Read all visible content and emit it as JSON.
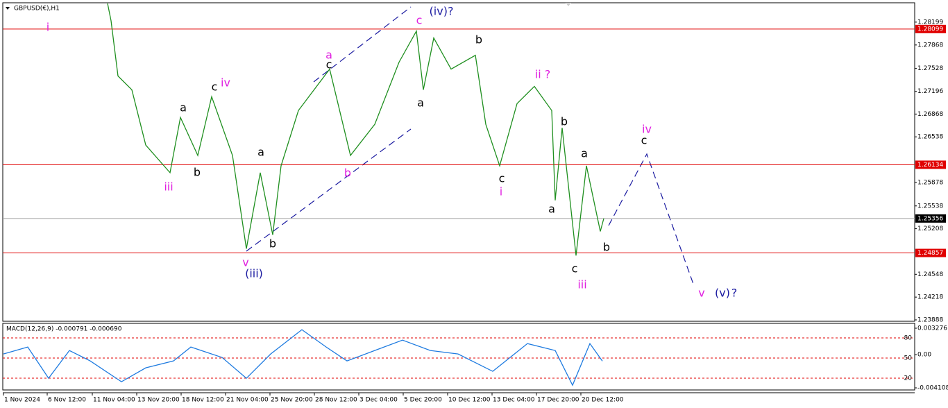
{
  "chart_data": [
    {
      "type": "line",
      "title": "GBPUSD(€),H1",
      "x": [
        151,
        156,
        166,
        186,
        206,
        241,
        256,
        281,
        301,
        331,
        351,
        371,
        389,
        401,
        426,
        471,
        501,
        536,
        571,
        596,
        606,
        621,
        646,
        681,
        696,
        716,
        741,
        766,
        791,
        796,
        806,
        826,
        841,
        861,
        866
      ],
      "series": [
        {
          "name": "GBPUSD",
          "color": "#1f8f1f",
          "values": [
            1.28469,
            1.28219,
            1.27419,
            1.27219,
            1.26419,
            1.26019,
            1.26819,
            1.26269,
            1.27119,
            1.26269,
            1.24919,
            1.26019,
            1.25119,
            1.26119,
            1.26919,
            1.27519,
            1.26269,
            1.26719,
            1.27619,
            1.28069,
            1.27219,
            1.27969,
            1.27519,
            1.27719,
            1.26719,
            1.26119,
            1.27019,
            1.27269,
            1.26919,
            1.25619,
            1.26669,
            1.24819,
            1.26119,
            1.25169,
            1.25356
          ]
        }
      ],
      "xlim": [
        0,
        1314
      ],
      "xticks": [
        {
          "value": 1,
          "label": "1 Nov 2024"
        },
        {
          "value": 64,
          "label": "6 Nov 12:00"
        },
        {
          "value": 129,
          "label": "11 Nov 04:00"
        },
        {
          "value": 193,
          "label": "13 Nov 20:00"
        },
        {
          "value": 257,
          "label": "18 Nov 12:00"
        },
        {
          "value": 321,
          "label": "21 Nov 04:00"
        },
        {
          "value": 385,
          "label": "25 Nov 20:00"
        },
        {
          "value": 449,
          "label": "28 Nov 12:00"
        },
        {
          "value": 513,
          "label": "3 Dec 04:00"
        },
        {
          "value": 577,
          "label": "5 Dec 20:00"
        },
        {
          "value": 641,
          "label": "10 Dec 12:00"
        },
        {
          "value": 705,
          "label": "13 Dec 04:00"
        },
        {
          "value": 769,
          "label": "17 Dec 20:00"
        },
        {
          "value": 833,
          "label": "20 Dec 12:00"
        }
      ],
      "ylim": [
        1.23868,
        1.28479
      ],
      "yticks": [
        1.28199,
        1.27868,
        1.27528,
        1.27196,
        1.26868,
        1.26538,
        1.25878,
        1.25538,
        1.25208,
        1.24548,
        1.24218,
        1.23888
      ],
      "hlines": [
        {
          "value": 1.28099,
          "color": "#e00000"
        },
        {
          "value": 1.26134,
          "color": "#e00000"
        },
        {
          "value": 1.24857,
          "color": "#e00000"
        },
        {
          "value": 1.25356,
          "color": "#a0a0a0"
        }
      ],
      "annotations": [
        {
          "text": "i",
          "color": "#e020e0"
        },
        {
          "text": "iii",
          "color": "#e020e0"
        },
        {
          "text": "iv",
          "color": "#e020e0"
        },
        {
          "text": "c",
          "color": "#000000"
        },
        {
          "text": "a",
          "color": "#000000"
        },
        {
          "text": "b",
          "color": "#000000"
        },
        {
          "text": "a",
          "color": "#000000"
        },
        {
          "text": "b",
          "color": "#000000"
        },
        {
          "text": "v",
          "color": "#e020e0"
        },
        {
          "text": "(iii)",
          "color": "#1a1aa0"
        },
        {
          "text": "a",
          "color": "#e020e0"
        },
        {
          "text": "c",
          "color": "#000000"
        },
        {
          "text": "b",
          "color": "#e020e0"
        },
        {
          "text": "c",
          "color": "#e020e0"
        },
        {
          "text": "(iv)?",
          "color": "#1a1aa0"
        },
        {
          "text": "b",
          "color": "#000000"
        },
        {
          "text": "a",
          "color": "#000000"
        },
        {
          "text": "ii ?",
          "color": "#e020e0"
        },
        {
          "text": "c",
          "color": "#000000"
        },
        {
          "text": "i",
          "color": "#e020e0"
        },
        {
          "text": "b",
          "color": "#000000"
        },
        {
          "text": "a",
          "color": "#000000"
        },
        {
          "text": "a",
          "color": "#000000"
        },
        {
          "text": "c",
          "color": "#000000"
        },
        {
          "text": "iii",
          "color": "#e020e0"
        },
        {
          "text": "b",
          "color": "#000000"
        },
        {
          "text": "iv",
          "color": "#e020e0"
        },
        {
          "text": "c",
          "color": "#000000"
        },
        {
          "text": "v",
          "color": "#e020e0"
        },
        {
          "text": "(v)",
          "color": "#1a1aa0"
        },
        {
          "text": "?",
          "color": "#1a1aa0"
        }
      ]
    },
    {
      "type": "line",
      "title": "MACD(12,26,9) -0.000791 -0.000690",
      "x": [
        1,
        36,
        66,
        96,
        126,
        171,
        206,
        246,
        271,
        316,
        351,
        386,
        431,
        466,
        496,
        536,
        576,
        616,
        656,
        706,
        756,
        796,
        821,
        846,
        864
      ],
      "series": [
        {
          "name": "MACD",
          "color": "#1e7be0",
          "values": [
            8.6e-05,
            0.000945,
            -0.002921,
            0.000515,
            -0.000773,
            -0.00335,
            -0.001632,
            -0.000773,
            0.000945,
            -0.000344,
            -0.002921,
            8.6e-05,
            0.003092,
            0.000945,
            -0.000773,
            0.000515,
            0.001804,
            0.000515,
            8.6e-05,
            -0.002062,
            0.001374,
            0.000515,
            -0.00378,
            0.001374,
            -0.000791
          ]
        }
      ],
      "xlim": [
        0,
        1314
      ],
      "ylim": [
        -0.004366,
        0.003877
      ],
      "yticks": [
        0.003276,
        {
          "value": 0,
          "label": "0.00"
        },
        -0.004108
      ],
      "y2lim": [
        2.4,
        101.8
      ],
      "y2ticks": [
        80,
        50,
        20
      ]
    }
  ]
}
